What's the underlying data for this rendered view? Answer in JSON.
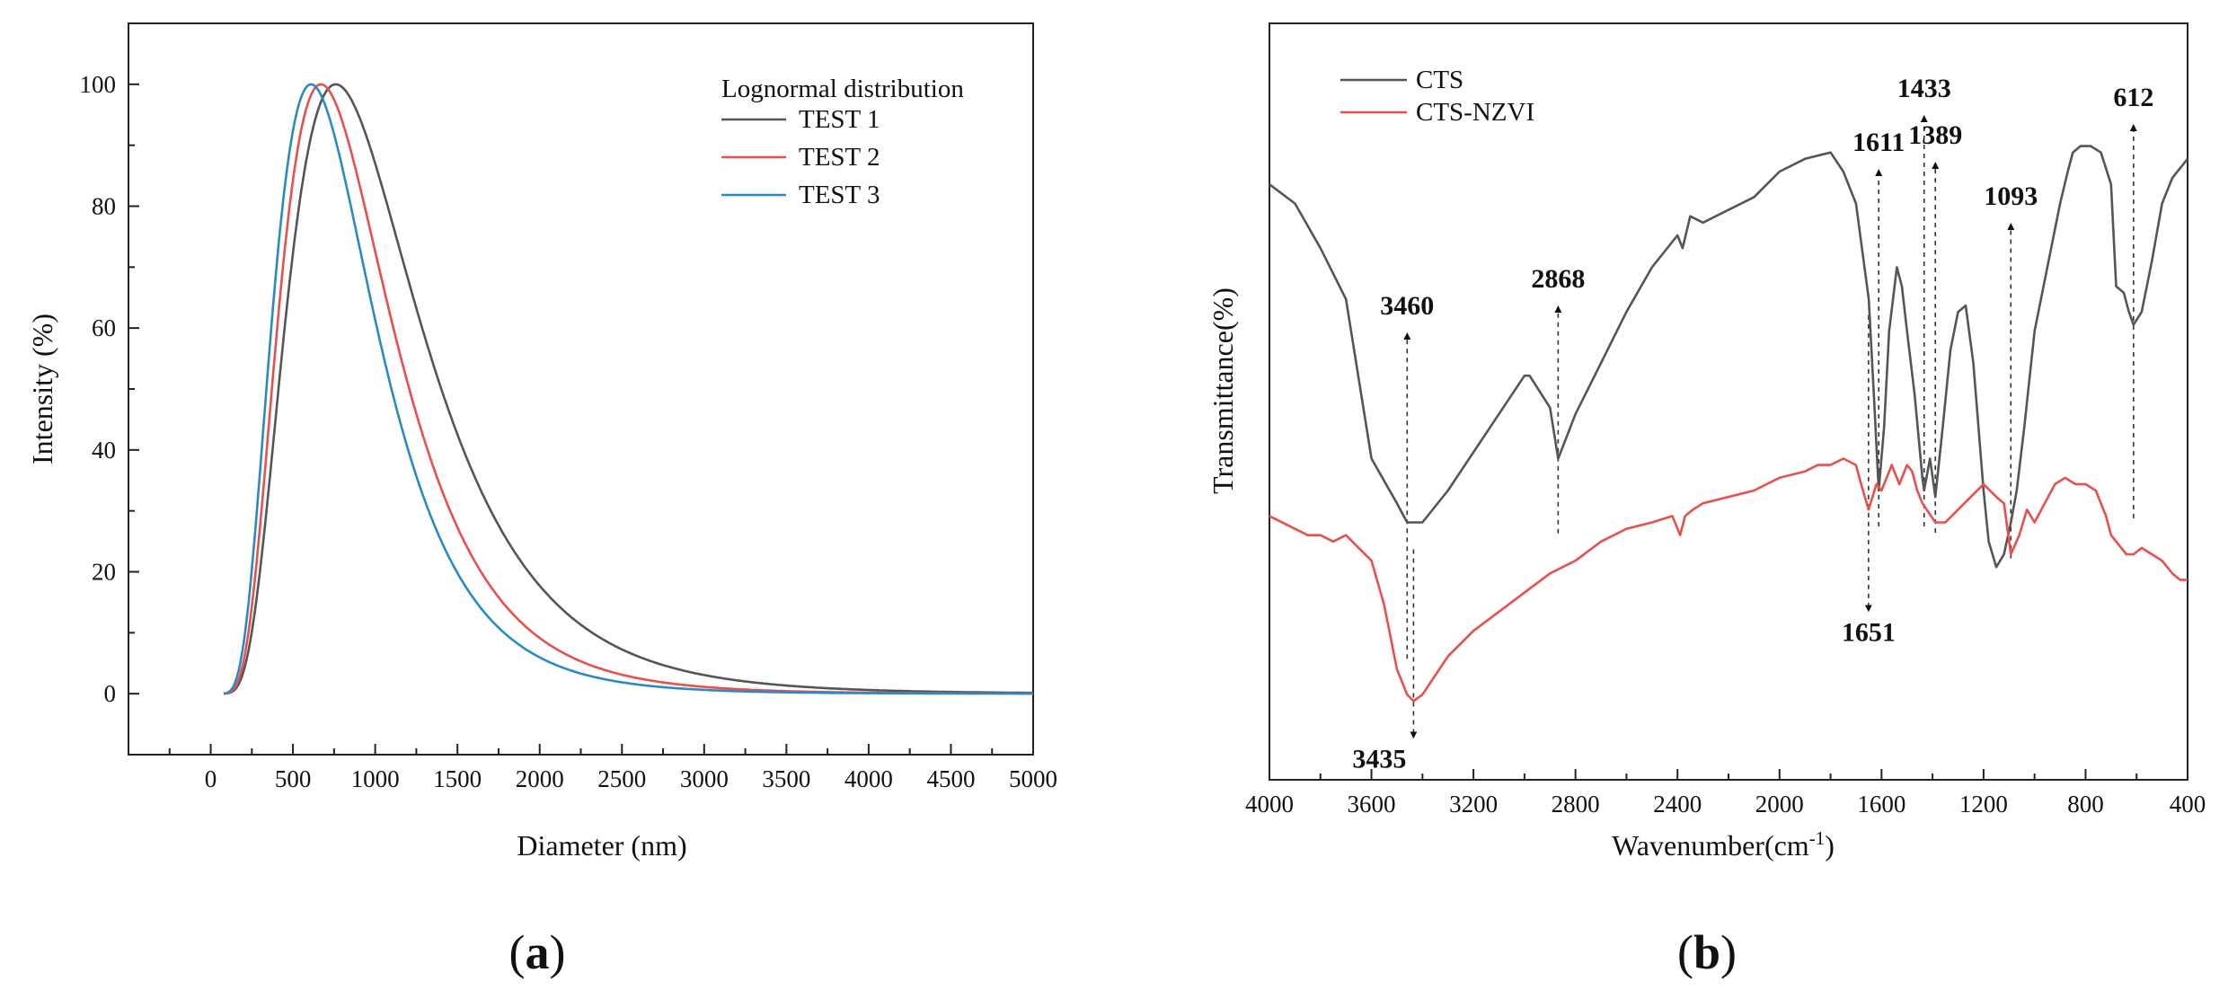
{
  "panel_labels": {
    "a": "a",
    "b": "b",
    "open": "(",
    "close": ")"
  },
  "chart_data": [
    {
      "id": "a",
      "type": "line",
      "title": "",
      "xlabel": "Diameter (nm)",
      "ylabel": "Intensity (%)",
      "xlim": [
        -500,
        5000
      ],
      "ylim": [
        -10,
        110
      ],
      "xticks": [
        0,
        500,
        1000,
        1500,
        2000,
        2500,
        3000,
        3500,
        4000,
        4500,
        5000
      ],
      "yticks": [
        0,
        20,
        40,
        60,
        80,
        100
      ],
      "legend_title": "Lognormal distribution",
      "legend_position": "top-right",
      "grid": false,
      "series": [
        {
          "name": "TEST 1",
          "color": "#555555",
          "mode": 760,
          "sigma": 0.52,
          "x": [
            100,
            200,
            300,
            400,
            500,
            600,
            700,
            760,
            800,
            900,
            1000,
            1200,
            1500,
            1750,
            2000,
            2500,
            3000,
            3500,
            4000,
            4500,
            5000
          ],
          "y": [
            0.8,
            5,
            20,
            45,
            70,
            89,
            98.5,
            100,
            99.5,
            95,
            87,
            68,
            43,
            28,
            18,
            7,
            3,
            1.3,
            0.6,
            0.3,
            0.1
          ]
        },
        {
          "name": "TEST 2",
          "color": "#e8504e",
          "mode": 670,
          "sigma": 0.5,
          "x": [
            100,
            200,
            300,
            400,
            500,
            600,
            670,
            700,
            800,
            900,
            1000,
            1200,
            1500,
            1750,
            2000,
            2500,
            3000,
            3500,
            4000,
            4500,
            5000
          ],
          "y": [
            0.9,
            7,
            27,
            56,
            81,
            96,
            100,
            99.5,
            95,
            87,
            78,
            58,
            35,
            21,
            13,
            4.5,
            1.6,
            0.6,
            0.3,
            0.1,
            0
          ]
        },
        {
          "name": "TEST 3",
          "color": "#2b8ac6",
          "mode": 610,
          "sigma": 0.5,
          "x": [
            100,
            200,
            300,
            400,
            500,
            610,
            700,
            800,
            900,
            1000,
            1200,
            1500,
            1750,
            2000,
            2500,
            3000,
            3500,
            4000,
            4500,
            5000
          ],
          "y": [
            1.2,
            10,
            34,
            66,
            88,
            100,
            98,
            91,
            82,
            72,
            52,
            31,
            18,
            11,
            3.7,
            1.3,
            0.5,
            0.2,
            0.1,
            0
          ]
        }
      ]
    },
    {
      "id": "b",
      "type": "line",
      "title": "",
      "xlabel": "Wavenumber(cm",
      "xlabel_superscript": "-1",
      "xlabel_suffix": ")",
      "ylabel": "Transmittance(%)",
      "xlim": [
        4000,
        400
      ],
      "ylim": [
        0,
        100
      ],
      "x_reversed": true,
      "xticks": [
        4000,
        3600,
        3200,
        2800,
        2400,
        2000,
        1600,
        1200,
        800,
        400
      ],
      "y_ticks_shown": false,
      "legend_position": "top-left",
      "grid": false,
      "series": [
        {
          "name": "CTS",
          "color": "#555555",
          "x": [
            4000,
            3900,
            3800,
            3700,
            3600,
            3500,
            3460,
            3400,
            3300,
            3200,
            3100,
            3000,
            2980,
            2900,
            2868,
            2800,
            2700,
            2600,
            2500,
            2400,
            2380,
            2350,
            2300,
            2200,
            2100,
            2000,
            1900,
            1800,
            1750,
            1700,
            1650,
            1630,
            1611,
            1590,
            1570,
            1540,
            1520,
            1500,
            1470,
            1440,
            1433,
            1410,
            1389,
            1360,
            1330,
            1300,
            1270,
            1240,
            1200,
            1180,
            1150,
            1120,
            1093,
            1070,
            1040,
            1000,
            950,
            900,
            870,
            850,
            820,
            780,
            740,
            700,
            680,
            650,
            630,
            612,
            580,
            540,
            500,
            460,
            420,
            400
          ],
          "y": [
            88,
            85,
            78,
            70,
            45,
            38,
            35,
            35,
            40,
            46,
            52,
            58,
            58,
            53,
            45,
            52,
            60,
            68,
            75,
            80,
            78,
            83,
            82,
            84,
            86,
            90,
            92,
            93,
            90,
            85,
            70,
            55,
            40,
            50,
            65,
            75,
            72,
            65,
            55,
            42,
            40,
            45,
            39,
            50,
            62,
            68,
            69,
            60,
            40,
            32,
            28,
            30,
            35,
            40,
            50,
            65,
            75,
            85,
            90,
            93,
            94,
            94,
            93,
            88,
            72,
            71,
            68,
            66,
            68,
            76,
            85,
            89,
            91,
            92
          ]
        },
        {
          "name": "CTS-NZVI",
          "color": "#e8504e",
          "x": [
            4000,
            3900,
            3850,
            3800,
            3750,
            3700,
            3650,
            3600,
            3550,
            3500,
            3460,
            3435,
            3400,
            3350,
            3300,
            3200,
            3100,
            3000,
            2900,
            2800,
            2700,
            2600,
            2500,
            2420,
            2390,
            2370,
            2340,
            2300,
            2200,
            2100,
            2000,
            1900,
            1850,
            1800,
            1750,
            1700,
            1680,
            1651,
            1620,
            1600,
            1560,
            1530,
            1500,
            1480,
            1460,
            1440,
            1389,
            1350,
            1300,
            1250,
            1200,
            1150,
            1120,
            1093,
            1060,
            1030,
            1000,
            960,
            920,
            880,
            840,
            800,
            760,
            720,
            700,
            660,
            640,
            612,
            580,
            540,
            500,
            460,
            430,
            400
          ],
          "y": [
            36,
            34,
            33,
            33,
            32,
            33,
            31,
            29,
            22,
            12,
            8,
            7,
            8,
            11,
            14,
            18,
            21,
            24,
            27,
            29,
            32,
            34,
            35,
            36,
            33,
            36,
            37,
            38,
            39,
            40,
            42,
            43,
            44,
            44,
            45,
            44,
            41,
            37,
            41,
            40,
            44,
            41,
            44,
            43,
            40,
            38,
            35,
            35,
            37,
            39,
            41,
            39,
            38,
            30,
            33,
            37,
            35,
            38,
            41,
            42,
            41,
            41,
            40,
            36,
            33,
            31,
            30,
            30,
            31,
            30,
            29,
            27,
            26,
            26
          ]
        }
      ],
      "annotations": [
        {
          "label": "3460",
          "series": "CTS",
          "x": 3460,
          "direction": "up"
        },
        {
          "label": "2868",
          "series": "CTS",
          "x": 2868,
          "direction": "up"
        },
        {
          "label": "1611",
          "series": "CTS",
          "x": 1611,
          "direction": "up"
        },
        {
          "label": "1433",
          "series": "CTS",
          "x": 1433,
          "direction": "up"
        },
        {
          "label": "1389",
          "series": "CTS",
          "x": 1389,
          "direction": "up"
        },
        {
          "label": "1093",
          "series": "CTS",
          "x": 1093,
          "direction": "up"
        },
        {
          "label": "612",
          "series": "CTS",
          "x": 612,
          "direction": "up"
        },
        {
          "label": "3435",
          "series": "CTS-NZVI",
          "x": 3435,
          "direction": "down"
        },
        {
          "label": "1651",
          "series": "CTS-NZVI",
          "x": 1651,
          "direction": "down"
        }
      ]
    }
  ]
}
